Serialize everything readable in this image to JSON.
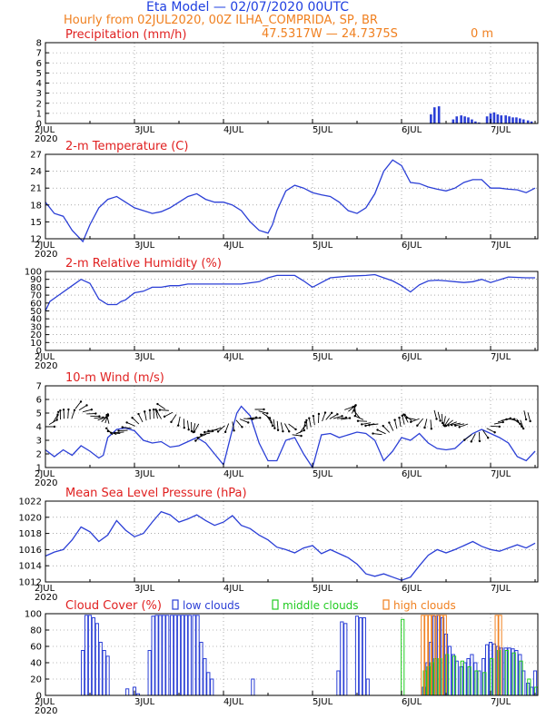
{
  "header": {
    "title": "Eta Model — 02/07/2020 00UTC",
    "subtitle": "Hourly from 02JUL2020, 00Z  ILHA_COMPRIDA, SP, BR",
    "coords": "47.5317W — 24.7375S",
    "elevation": "0  m"
  },
  "colors": {
    "line": "#2b3fd6",
    "title": "#e02020",
    "low": "#2b3fd6",
    "middle": "#22cc22",
    "high": "#f08020"
  },
  "x_axis": {
    "ticks": [
      {
        "label": "2JUL",
        "day": 0
      },
      {
        "label": "3JUL",
        "day": 1
      },
      {
        "label": "4JUL",
        "day": 2
      },
      {
        "label": "5JUL",
        "day": 3
      },
      {
        "label": "6JUL",
        "day": 4
      },
      {
        "label": "7JUL",
        "day": 5
      }
    ],
    "year": "2020",
    "range_days": [
      0,
      5.5
    ]
  },
  "chart_data": [
    {
      "type": "bar",
      "title": "Precipitation (mm/h)",
      "ylim": [
        0,
        8
      ],
      "yticks": [
        0,
        1,
        2,
        3,
        4,
        5,
        6,
        7,
        8
      ],
      "x_days": [
        4.33,
        4.37,
        4.42,
        4.58,
        4.62,
        4.67,
        4.71,
        4.75,
        4.79,
        4.83,
        4.87,
        4.96,
        5.0,
        5.04,
        5.08,
        5.12,
        5.17,
        5.21,
        5.25,
        5.29,
        5.33,
        5.37,
        5.42,
        5.46
      ],
      "values": [
        0.9,
        1.6,
        1.7,
        0.4,
        0.7,
        0.8,
        0.7,
        0.6,
        0.4,
        0.2,
        0.1,
        0.7,
        1.0,
        1.1,
        0.9,
        0.8,
        0.8,
        0.7,
        0.6,
        0.6,
        0.5,
        0.4,
        0.3,
        0.2
      ]
    },
    {
      "type": "line",
      "title": "2-m Temperature (C)",
      "ylim": [
        12,
        27
      ],
      "yticks": [
        12,
        15,
        18,
        21,
        24,
        27
      ],
      "x_days": [
        0,
        0.1,
        0.2,
        0.3,
        0.42,
        0.5,
        0.6,
        0.7,
        0.8,
        0.9,
        1.0,
        1.1,
        1.2,
        1.3,
        1.4,
        1.5,
        1.6,
        1.7,
        1.8,
        1.9,
        2.0,
        2.1,
        2.2,
        2.3,
        2.4,
        2.5,
        2.55,
        2.6,
        2.7,
        2.8,
        2.9,
        3.0,
        3.1,
        3.2,
        3.3,
        3.4,
        3.5,
        3.6,
        3.7,
        3.8,
        3.9,
        4.0,
        4.1,
        4.2,
        4.3,
        4.4,
        4.5,
        4.6,
        4.7,
        4.8,
        4.9,
        5.0,
        5.1,
        5.2,
        5.3,
        5.4,
        5.5
      ],
      "values": [
        18.5,
        16.5,
        16.0,
        13.5,
        11.5,
        14.5,
        17.5,
        19.0,
        19.5,
        18.5,
        17.5,
        17.0,
        16.5,
        16.8,
        17.5,
        18.5,
        19.5,
        20.0,
        19.0,
        18.5,
        18.5,
        18.0,
        17.0,
        15.0,
        13.5,
        13.0,
        14.5,
        17.0,
        20.5,
        21.5,
        21.0,
        20.2,
        19.8,
        19.5,
        18.5,
        17.0,
        16.5,
        17.5,
        20.0,
        24.0,
        26.0,
        25.0,
        22.0,
        21.8,
        21.2,
        20.8,
        20.5,
        21.0,
        22.0,
        22.5,
        22.5,
        21.0,
        21.0,
        20.8,
        20.7,
        20.2,
        21.0
      ]
    },
    {
      "type": "line",
      "title": "2-m Relative Humidity (%)",
      "ylim": [
        0,
        100
      ],
      "yticks": [
        0,
        10,
        20,
        30,
        40,
        50,
        60,
        70,
        80,
        90,
        100
      ],
      "x_days": [
        0,
        0.05,
        0.15,
        0.3,
        0.4,
        0.5,
        0.6,
        0.7,
        0.8,
        0.85,
        0.9,
        1.0,
        1.1,
        1.2,
        1.3,
        1.4,
        1.5,
        1.6,
        1.8,
        2.0,
        2.2,
        2.4,
        2.5,
        2.6,
        2.7,
        2.8,
        2.9,
        3.0,
        3.2,
        3.4,
        3.6,
        3.7,
        3.8,
        3.9,
        4.0,
        4.1,
        4.2,
        4.3,
        4.4,
        4.5,
        4.6,
        4.7,
        4.8,
        4.9,
        5.0,
        5.2,
        5.4,
        5.5
      ],
      "values": [
        50,
        62,
        70,
        82,
        90,
        85,
        65,
        58,
        58,
        62,
        64,
        73,
        75,
        80,
        80,
        82,
        82,
        84,
        84,
        84,
        84,
        87,
        92,
        95,
        95,
        95,
        88,
        80,
        92,
        94,
        95,
        96,
        92,
        88,
        82,
        74,
        83,
        88,
        89,
        88,
        87,
        86,
        87,
        90,
        86,
        93,
        92,
        92
      ]
    },
    {
      "type": "line",
      "title": "10-m Wind (m/s)",
      "ylim": [
        1,
        7
      ],
      "yticks": [
        1,
        2,
        3,
        4,
        5,
        6,
        7
      ],
      "x_days": [
        0,
        0.1,
        0.2,
        0.3,
        0.4,
        0.5,
        0.6,
        0.65,
        0.7,
        0.8,
        0.9,
        1.0,
        1.1,
        1.2,
        1.3,
        1.4,
        1.5,
        1.6,
        1.7,
        1.8,
        1.9,
        2.0,
        2.1,
        2.15,
        2.2,
        2.3,
        2.4,
        2.5,
        2.6,
        2.7,
        2.8,
        2.9,
        3.0,
        3.1,
        3.2,
        3.3,
        3.4,
        3.5,
        3.6,
        3.7,
        3.8,
        3.9,
        4.0,
        4.1,
        4.2,
        4.3,
        4.4,
        4.5,
        4.6,
        4.7,
        4.8,
        4.9,
        5.0,
        5.1,
        5.2,
        5.3,
        5.4,
        5.5
      ],
      "values": [
        2.3,
        1.8,
        2.3,
        1.9,
        2.6,
        2.2,
        1.7,
        1.9,
        3.2,
        3.8,
        3.9,
        3.7,
        3.0,
        2.8,
        2.9,
        2.5,
        2.6,
        2.9,
        3.2,
        2.8,
        2.0,
        1.2,
        3.8,
        5.0,
        5.5,
        4.8,
        2.8,
        1.5,
        1.5,
        3.0,
        3.2,
        2.0,
        1.0,
        3.4,
        3.5,
        3.2,
        3.4,
        3.6,
        3.5,
        3.0,
        1.5,
        2.2,
        3.2,
        3.0,
        3.5,
        2.8,
        2.4,
        2.3,
        2.4,
        3.0,
        3.5,
        3.8,
        3.5,
        3.2,
        2.8,
        1.8,
        1.5,
        2.2
      ],
      "barbs_note": "wind vectors plotted along speed curve"
    },
    {
      "type": "line",
      "title": "Mean Sea Level Pressure (hPa)",
      "ylim": [
        1012,
        1022
      ],
      "yticks": [
        1012,
        1014,
        1016,
        1018,
        1020,
        1022
      ],
      "x_days": [
        0,
        0.1,
        0.2,
        0.3,
        0.4,
        0.5,
        0.6,
        0.7,
        0.8,
        0.9,
        1.0,
        1.1,
        1.2,
        1.3,
        1.4,
        1.5,
        1.6,
        1.7,
        1.8,
        1.9,
        2.0,
        2.1,
        2.2,
        2.3,
        2.4,
        2.5,
        2.6,
        2.7,
        2.8,
        2.9,
        3.0,
        3.1,
        3.2,
        3.3,
        3.4,
        3.5,
        3.6,
        3.7,
        3.8,
        3.9,
        4.0,
        4.1,
        4.2,
        4.3,
        4.4,
        4.5,
        4.6,
        4.7,
        4.8,
        4.9,
        5.0,
        5.1,
        5.2,
        5.3,
        5.4,
        5.5
      ],
      "values": [
        1015.2,
        1015.7,
        1016.0,
        1017.2,
        1018.8,
        1018.2,
        1017.0,
        1017.8,
        1019.6,
        1018.4,
        1017.6,
        1018.0,
        1019.4,
        1020.7,
        1020.3,
        1019.4,
        1019.8,
        1020.3,
        1019.6,
        1019.0,
        1019.4,
        1020.2,
        1019.0,
        1018.6,
        1017.8,
        1017.2,
        1016.3,
        1016.0,
        1015.6,
        1016.2,
        1016.5,
        1015.5,
        1016.0,
        1015.5,
        1015.0,
        1014.2,
        1013.0,
        1012.7,
        1013.0,
        1012.6,
        1012.2,
        1012.6,
        1014.0,
        1015.3,
        1016.0,
        1015.6,
        1016.0,
        1016.5,
        1017.0,
        1016.4,
        1016.0,
        1015.8,
        1016.2,
        1016.6,
        1016.2,
        1016.8
      ]
    },
    {
      "type": "bar",
      "title": "Cloud Cover (%)",
      "ylim": [
        0,
        100
      ],
      "yticks": [
        0,
        20,
        40,
        60,
        80,
        100
      ],
      "legend": [
        "low clouds",
        "middle clouds",
        "high clouds"
      ],
      "series": [
        {
          "name": "low clouds",
          "x_days": [
            0.42,
            0.46,
            0.5,
            0.54,
            0.58,
            0.62,
            0.66,
            0.7,
            0.92,
            1.0,
            1.04,
            1.17,
            1.21,
            1.25,
            1.29,
            1.33,
            1.37,
            1.42,
            1.46,
            1.5,
            1.54,
            1.58,
            1.62,
            1.67,
            1.71,
            1.75,
            1.79,
            1.83,
            1.87,
            2.33,
            3.29,
            3.33,
            3.37,
            3.5,
            3.54,
            3.58,
            3.62,
            4.25,
            4.29,
            4.33,
            4.37,
            4.42,
            4.46,
            4.5,
            4.54,
            4.58,
            4.62,
            4.67,
            4.71,
            4.75,
            4.79,
            4.83,
            4.87,
            4.92,
            4.96,
            5.0,
            5.04,
            5.08,
            5.12,
            5.17,
            5.21,
            5.25,
            5.29,
            5.33,
            5.37,
            5.42,
            5.46,
            5.5
          ],
          "values": [
            55,
            98,
            98,
            95,
            88,
            65,
            55,
            48,
            8,
            10,
            2,
            55,
            97,
            98,
            98,
            98,
            98,
            98,
            98,
            98,
            98,
            98,
            98,
            98,
            98,
            65,
            45,
            28,
            20,
            20,
            30,
            90,
            88,
            97,
            95,
            95,
            20,
            10,
            40,
            65,
            97,
            98,
            95,
            75,
            60,
            50,
            42,
            35,
            40,
            45,
            50,
            40,
            30,
            45,
            62,
            65,
            63,
            60,
            58,
            58,
            58,
            57,
            55,
            50,
            30,
            15,
            10,
            30
          ]
        },
        {
          "name": "middle clouds",
          "x_days": [
            4.0,
            4.25,
            4.29,
            4.33,
            4.37,
            4.42,
            4.5,
            4.58,
            4.67,
            4.75,
            4.83,
            4.92,
            5.0,
            5.08,
            5.17,
            5.25,
            5.33,
            5.42,
            5.5
          ],
          "values": [
            93,
            30,
            35,
            40,
            45,
            45,
            50,
            48,
            42,
            35,
            30,
            28,
            45,
            55,
            55,
            52,
            42,
            20,
            10
          ]
        },
        {
          "name": "high clouds",
          "x_days": [
            4.25,
            4.29,
            4.33,
            4.37,
            4.42,
            4.46,
            4.5,
            5.08,
            5.12
          ],
          "values": [
            98,
            98,
            98,
            98,
            98,
            98,
            98,
            98,
            98
          ]
        }
      ]
    }
  ]
}
